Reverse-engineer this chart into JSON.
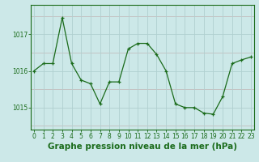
{
  "x": [
    0,
    1,
    2,
    3,
    4,
    5,
    6,
    7,
    8,
    9,
    10,
    11,
    12,
    13,
    14,
    15,
    16,
    17,
    18,
    19,
    20,
    21,
    22,
    23
  ],
  "y": [
    1016.0,
    1016.2,
    1016.2,
    1017.45,
    1016.2,
    1015.75,
    1015.65,
    1015.1,
    1015.7,
    1015.7,
    1016.6,
    1016.75,
    1016.75,
    1016.45,
    1016.0,
    1015.1,
    1015.0,
    1015.0,
    1014.85,
    1014.82,
    1015.3,
    1016.2,
    1016.3,
    1016.38
  ],
  "line_color": "#1a6b1a",
  "marker": "+",
  "bg_color": "#cce8e8",
  "grid_color": "#b0d0d0",
  "xlabel": "Graphe pression niveau de la mer (hPa)",
  "yticks": [
    1015,
    1016,
    1017
  ],
  "xticks": [
    0,
    1,
    2,
    3,
    4,
    5,
    6,
    7,
    8,
    9,
    10,
    11,
    12,
    13,
    14,
    15,
    16,
    17,
    18,
    19,
    20,
    21,
    22,
    23
  ],
  "ylim": [
    1014.4,
    1017.8
  ],
  "xlim": [
    -0.3,
    23.3
  ],
  "tick_fontsize": 5.5,
  "xlabel_fontsize": 7.5
}
